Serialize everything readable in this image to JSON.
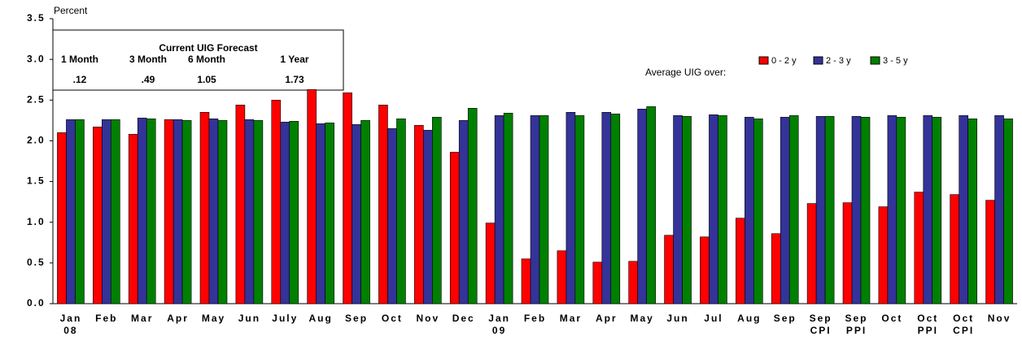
{
  "chart_data": {
    "type": "bar",
    "y_label": "Percent",
    "legend_title": "Average UIG over:",
    "legend": "top-right",
    "categories": [
      [
        "Jan",
        "08"
      ],
      [
        "Feb"
      ],
      [
        "Mar"
      ],
      [
        "Apr"
      ],
      [
        "May"
      ],
      [
        "Jun"
      ],
      [
        "July"
      ],
      [
        "Aug"
      ],
      [
        "Sep"
      ],
      [
        "Oct"
      ],
      [
        "Nov"
      ],
      [
        "Dec"
      ],
      [
        "Jan",
        "09"
      ],
      [
        "Feb"
      ],
      [
        "Mar"
      ],
      [
        "Apr"
      ],
      [
        "May"
      ],
      [
        "Jun"
      ],
      [
        "Jul"
      ],
      [
        "Aug"
      ],
      [
        "Sep"
      ],
      [
        "Sep",
        "CPI"
      ],
      [
        "Sep",
        "PPI"
      ],
      [
        "Oct"
      ],
      [
        "Oct",
        "PPI"
      ],
      [
        "Oct",
        "CPI"
      ],
      [
        "Nov"
      ]
    ],
    "series": [
      {
        "name": "0 - 2 y",
        "color": "#ff0000",
        "values": [
          2.1,
          2.17,
          2.08,
          2.26,
          2.35,
          2.44,
          2.5,
          2.63,
          2.59,
          2.44,
          2.19,
          1.86,
          0.99,
          0.55,
          0.65,
          0.51,
          0.52,
          0.84,
          0.82,
          1.05,
          0.86,
          1.23,
          1.24,
          1.19,
          1.37,
          1.34,
          1.27
        ]
      },
      {
        "name": "2 - 3 y",
        "color": "#333399",
        "values": [
          2.26,
          2.26,
          2.28,
          2.26,
          2.27,
          2.26,
          2.23,
          2.21,
          2.2,
          2.15,
          2.13,
          2.25,
          2.31,
          2.31,
          2.35,
          2.35,
          2.39,
          2.31,
          2.32,
          2.29,
          2.29,
          2.3,
          2.3,
          2.31,
          2.31,
          2.31,
          2.31
        ]
      },
      {
        "name": "3 - 5 y",
        "color": "#008000",
        "values": [
          2.26,
          2.26,
          2.27,
          2.25,
          2.25,
          2.25,
          2.24,
          2.22,
          2.25,
          2.27,
          2.29,
          2.4,
          2.34,
          2.31,
          2.31,
          2.33,
          2.42,
          2.3,
          2.31,
          2.27,
          2.31,
          2.3,
          2.29,
          2.29,
          2.29,
          2.27,
          2.27
        ]
      }
    ],
    "ylim": [
      0,
      3.5
    ],
    "yticks": [
      {
        "value": 0,
        "label": "0.0"
      },
      {
        "value": 0.5,
        "label": "0.5"
      },
      {
        "value": 1,
        "label": "1.0"
      },
      {
        "value": 1.5,
        "label": "1.5"
      },
      {
        "value": 2,
        "label": "2.0"
      },
      {
        "value": 2.5,
        "label": "2.5"
      },
      {
        "value": 3,
        "label": "3.0"
      },
      {
        "value": 3.5,
        "label": "3.5"
      }
    ],
    "forecast_box": {
      "title": "Current UIG Forecast",
      "headers": [
        "1 Month",
        "3 Month",
        "6 Month",
        "1 Year"
      ],
      "values": [
        ".12",
        ".49",
        "1.05",
        "1.73"
      ]
    }
  }
}
